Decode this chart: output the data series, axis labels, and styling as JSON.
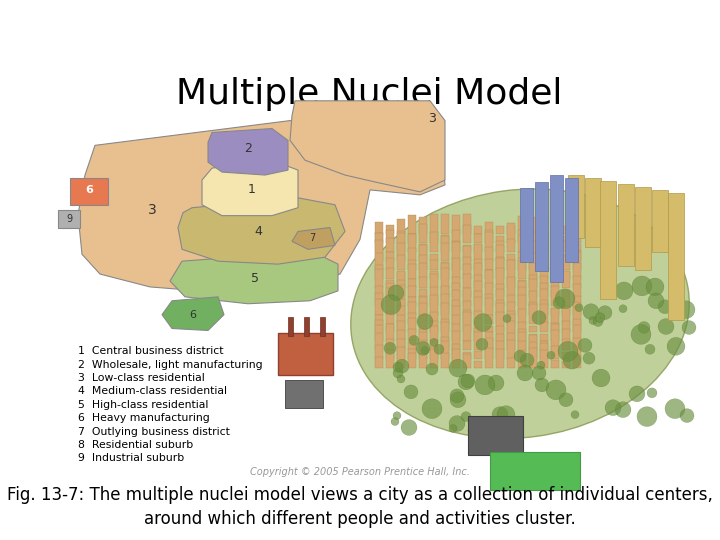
{
  "title": "Multiple Nuclei Model",
  "title_fontsize": 26,
  "title_fontfamily": "sans-serif",
  "bg_color": "#ffffff",
  "legend_items": [
    "1  Central business district",
    "2  Wholesale, light manufacturing",
    "3  Low-class residential",
    "4  Medium-class residential",
    "5  High-class residential",
    "6  Heavy manufacturing",
    "7  Outlying business district",
    "8  Residential suburb",
    "9  Industrial suburb"
  ],
  "zone_colors": {
    "1": "#f5e6b0",
    "2": "#9b8dc0",
    "3": "#e8c090",
    "4": "#c8b870",
    "5": "#a8c880",
    "6": "#e87850",
    "7": "#c0a060",
    "8": "#80c870",
    "9": "#b0b0b0"
  },
  "copyright_text": "Copyright © 2005 Pearson Prentice Hall, Inc.",
  "copyright_fontsize": 7,
  "caption_line1": "Fig. 13-7: The multiple nuclei model views a city as a collection of individual centers,",
  "caption_line2": "around which different people and activities cluster.",
  "caption_fontsize": 12
}
